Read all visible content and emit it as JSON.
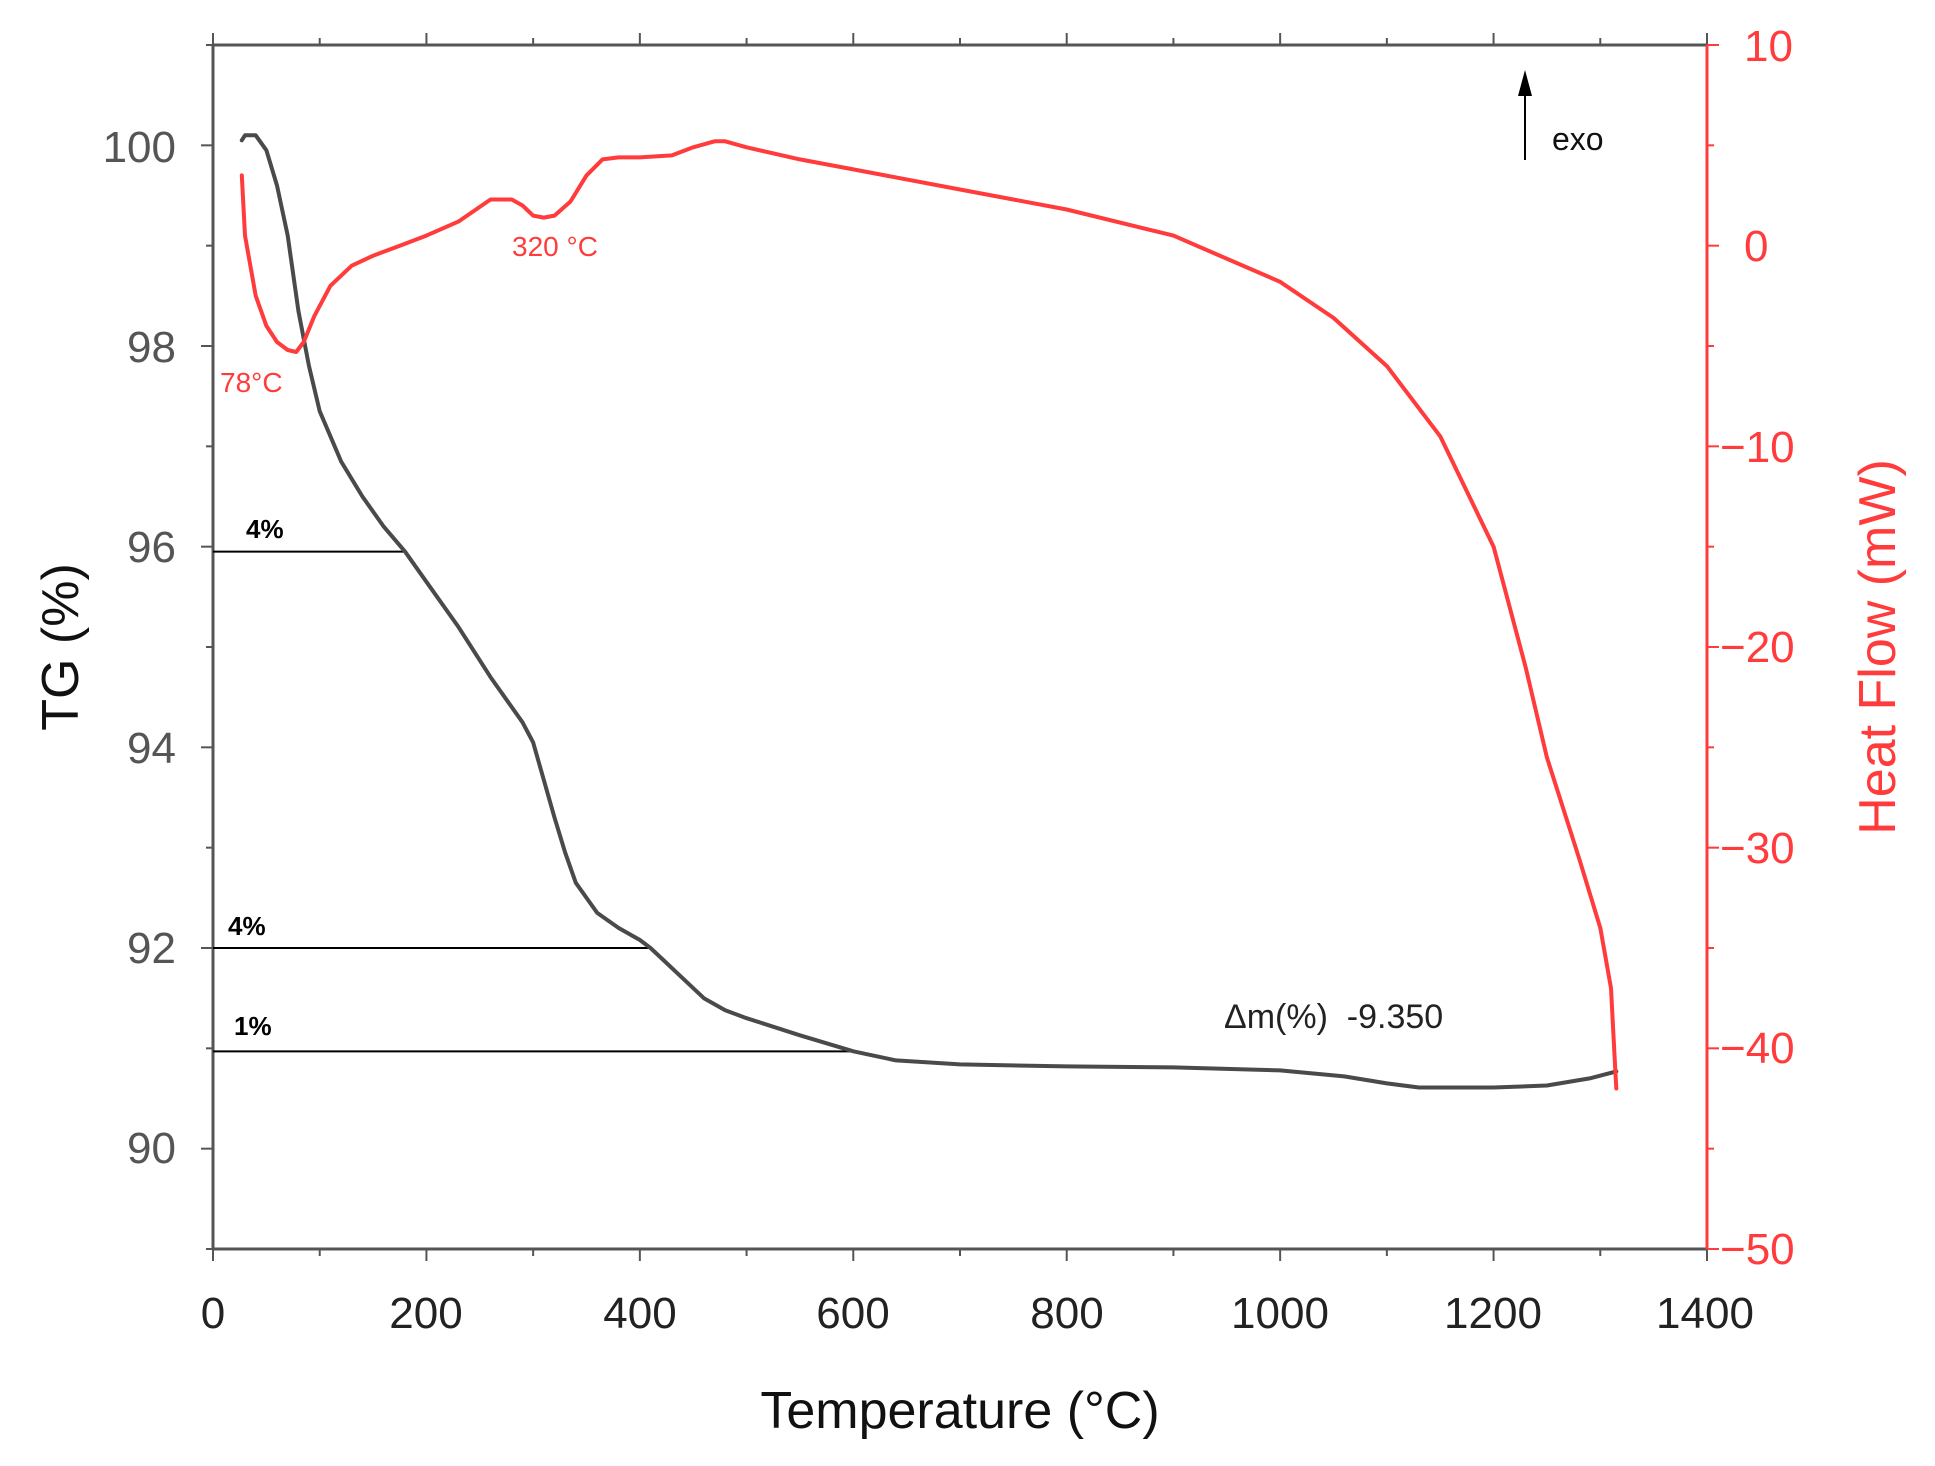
{
  "chart_data": {
    "type": "line",
    "title": "",
    "xlabel": "Temperature (°C)",
    "ylabel": "TG (%)",
    "y2label": "Heat Flow (mW)",
    "xlim": [
      0,
      1400
    ],
    "ylim": [
      89,
      101
    ],
    "y2lim": [
      -50,
      10
    ],
    "xticks": [
      0,
      200,
      400,
      600,
      800,
      1000,
      1200,
      1400
    ],
    "yticks": [
      90,
      92,
      94,
      96,
      98,
      100
    ],
    "y2ticks": [
      -50,
      -40,
      -30,
      -20,
      -10,
      0,
      10
    ],
    "x_tick_labels": [
      "0",
      "200",
      "400",
      "600",
      "800",
      "1000",
      "1200",
      "1400"
    ],
    "y_tick_labels": [
      "90",
      "92",
      "94",
      "96",
      "98",
      "100"
    ],
    "y2_tick_labels": [
      "−50",
      "−40",
      "−30",
      "−20",
      "−10",
      "0",
      "10"
    ],
    "colors": {
      "tg": "#4a4a4a",
      "heat_flow": "#ff3b3b",
      "axis_left": "#555555",
      "axis_right": "#ff3b3b",
      "annotation": "#000000"
    },
    "series": [
      {
        "name": "TG",
        "axis": "left",
        "color": "#4a4a4a",
        "x": [
          27,
          30,
          40,
          50,
          60,
          70,
          80,
          90,
          100,
          120,
          140,
          160,
          180,
          200,
          230,
          260,
          290,
          300,
          320,
          330,
          340,
          360,
          380,
          400,
          410,
          420,
          440,
          460,
          480,
          500,
          550,
          600,
          640,
          700,
          800,
          900,
          1000,
          1060,
          1100,
          1130,
          1170,
          1200,
          1250,
          1290,
          1315
        ],
        "y": [
          100.05,
          100.1,
          100.1,
          99.95,
          99.6,
          99.1,
          98.35,
          97.8,
          97.35,
          96.85,
          96.5,
          96.2,
          95.95,
          95.65,
          95.2,
          94.7,
          94.25,
          94.05,
          93.3,
          92.95,
          92.65,
          92.35,
          92.2,
          92.08,
          92.0,
          91.9,
          91.7,
          91.5,
          91.38,
          91.3,
          91.13,
          90.97,
          90.88,
          90.84,
          90.82,
          90.81,
          90.78,
          90.72,
          90.65,
          90.61,
          90.61,
          90.61,
          90.63,
          90.7,
          90.77
        ]
      },
      {
        "name": "Heat Flow",
        "axis": "right",
        "color": "#ff3b3b",
        "x": [
          27,
          30,
          40,
          50,
          60,
          70,
          78,
          85,
          95,
          110,
          130,
          150,
          175,
          200,
          230,
          260,
          280,
          290,
          300,
          310,
          320,
          335,
          350,
          365,
          380,
          400,
          430,
          450,
          470,
          480,
          500,
          550,
          600,
          700,
          800,
          900,
          1000,
          1050,
          1100,
          1150,
          1200,
          1230,
          1250,
          1280,
          1300,
          1310,
          1312,
          1314,
          1315
        ],
        "y": [
          3.5,
          0.5,
          -2.5,
          -4.0,
          -4.8,
          -5.2,
          -5.3,
          -4.8,
          -3.5,
          -2.0,
          -1.0,
          -0.5,
          0.0,
          0.5,
          1.2,
          2.3,
          2.3,
          2.0,
          1.5,
          1.4,
          1.5,
          2.2,
          3.5,
          4.3,
          4.4,
          4.4,
          4.5,
          4.9,
          5.2,
          5.2,
          4.9,
          4.3,
          3.8,
          2.8,
          1.8,
          0.5,
          -1.8,
          -3.6,
          -6.0,
          -9.5,
          -15.0,
          -21.0,
          -25.5,
          -30.5,
          -34.0,
          -37.0,
          -39.0,
          -41.0,
          -42.0
        ]
      }
    ],
    "annotations": {
      "peak_78": "78°C",
      "peak_320": "320 °C",
      "exo_label": "exo",
      "step_1": "4%",
      "step_2": "4%",
      "step_3": "1%",
      "mass_loss": "Δm(%)  -9.350"
    },
    "step_lines": [
      {
        "y": 95.95,
        "x_end": 180
      },
      {
        "y": 92.0,
        "x_end": 410
      },
      {
        "y": 90.97,
        "x_end": 600
      }
    ]
  }
}
